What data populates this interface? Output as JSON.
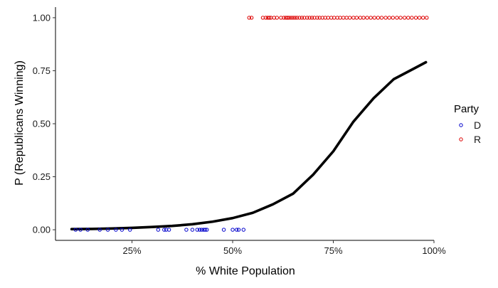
{
  "chart_data": {
    "type": "scatter",
    "title": "",
    "xlabel": "% White Population",
    "ylabel": "P (Republicans Winning)",
    "xlim": [
      0.06,
      1.0
    ],
    "ylim": [
      -0.05,
      1.05
    ],
    "x_ticks": [
      {
        "value": 0.25,
        "label": "25%"
      },
      {
        "value": 0.5,
        "label": "50%"
      },
      {
        "value": 0.75,
        "label": "75%"
      },
      {
        "value": 1.0,
        "label": "100%"
      }
    ],
    "y_ticks": [
      {
        "value": 0.0,
        "label": "0.00"
      },
      {
        "value": 0.25,
        "label": "0.25"
      },
      {
        "value": 0.5,
        "label": "0.50"
      },
      {
        "value": 0.75,
        "label": "0.75"
      },
      {
        "value": 1.0,
        "label": "1.00"
      }
    ],
    "grid": false,
    "legend": {
      "title": "Party",
      "position": "right",
      "items": [
        {
          "label": "D",
          "color": "#0000cc"
        },
        {
          "label": "R",
          "color": "#dd0000"
        }
      ]
    },
    "series": [
      {
        "name": "D",
        "color": "#0000cc",
        "marker": "open-circle",
        "points": [
          [
            0.11,
            0
          ],
          [
            0.122,
            0
          ],
          [
            0.14,
            0
          ],
          [
            0.17,
            0
          ],
          [
            0.19,
            0
          ],
          [
            0.21,
            0
          ],
          [
            0.225,
            0
          ],
          [
            0.245,
            0
          ],
          [
            0.315,
            0
          ],
          [
            0.33,
            0
          ],
          [
            0.335,
            0
          ],
          [
            0.342,
            0
          ],
          [
            0.385,
            0
          ],
          [
            0.4,
            0
          ],
          [
            0.412,
            0
          ],
          [
            0.418,
            0
          ],
          [
            0.423,
            0
          ],
          [
            0.428,
            0
          ],
          [
            0.432,
            0
          ],
          [
            0.436,
            0
          ],
          [
            0.478,
            0
          ],
          [
            0.5,
            0
          ],
          [
            0.51,
            0
          ],
          [
            0.515,
            0
          ],
          [
            0.527,
            0
          ]
        ]
      },
      {
        "name": "R",
        "color": "#dd0000",
        "marker": "open-circle",
        "points": [
          [
            0.541,
            1
          ],
          [
            0.547,
            1
          ],
          [
            0.575,
            1
          ],
          [
            0.582,
            1
          ],
          [
            0.587,
            1
          ],
          [
            0.591,
            1
          ],
          [
            0.595,
            1
          ],
          [
            0.603,
            1
          ],
          [
            0.61,
            1
          ],
          [
            0.62,
            1
          ],
          [
            0.627,
            1
          ],
          [
            0.632,
            1
          ],
          [
            0.636,
            1
          ],
          [
            0.64,
            1
          ],
          [
            0.645,
            1
          ],
          [
            0.65,
            1
          ],
          [
            0.655,
            1
          ],
          [
            0.66,
            1
          ],
          [
            0.666,
            1
          ],
          [
            0.672,
            1
          ],
          [
            0.678,
            1
          ],
          [
            0.685,
            1
          ],
          [
            0.691,
            1
          ],
          [
            0.697,
            1
          ],
          [
            0.703,
            1
          ],
          [
            0.71,
            1
          ],
          [
            0.716,
            1
          ],
          [
            0.723,
            1
          ],
          [
            0.73,
            1
          ],
          [
            0.737,
            1
          ],
          [
            0.745,
            1
          ],
          [
            0.752,
            1
          ],
          [
            0.76,
            1
          ],
          [
            0.767,
            1
          ],
          [
            0.775,
            1
          ],
          [
            0.783,
            1
          ],
          [
            0.791,
            1
          ],
          [
            0.8,
            1
          ],
          [
            0.808,
            1
          ],
          [
            0.817,
            1
          ],
          [
            0.825,
            1
          ],
          [
            0.834,
            1
          ],
          [
            0.843,
            1
          ],
          [
            0.852,
            1
          ],
          [
            0.861,
            1
          ],
          [
            0.87,
            1
          ],
          [
            0.88,
            1
          ],
          [
            0.889,
            1
          ],
          [
            0.898,
            1
          ],
          [
            0.908,
            1
          ],
          [
            0.917,
            1
          ],
          [
            0.927,
            1
          ],
          [
            0.936,
            1
          ],
          [
            0.945,
            1
          ],
          [
            0.955,
            1
          ],
          [
            0.964,
            1
          ],
          [
            0.973,
            1
          ],
          [
            0.982,
            1
          ]
        ]
      }
    ],
    "fitted_curve": {
      "type": "logistic",
      "color": "#000000",
      "points": [
        [
          0.1,
          0.003
        ],
        [
          0.15,
          0.004
        ],
        [
          0.2,
          0.006
        ],
        [
          0.25,
          0.009
        ],
        [
          0.3,
          0.013
        ],
        [
          0.35,
          0.018
        ],
        [
          0.4,
          0.026
        ],
        [
          0.45,
          0.038
        ],
        [
          0.5,
          0.055
        ],
        [
          0.55,
          0.08
        ],
        [
          0.6,
          0.12
        ],
        [
          0.65,
          0.17
        ],
        [
          0.7,
          0.26
        ],
        [
          0.75,
          0.37
        ],
        [
          0.8,
          0.51
        ],
        [
          0.85,
          0.62
        ],
        [
          0.9,
          0.71
        ],
        [
          0.95,
          0.76
        ],
        [
          0.98,
          0.79
        ]
      ]
    }
  }
}
